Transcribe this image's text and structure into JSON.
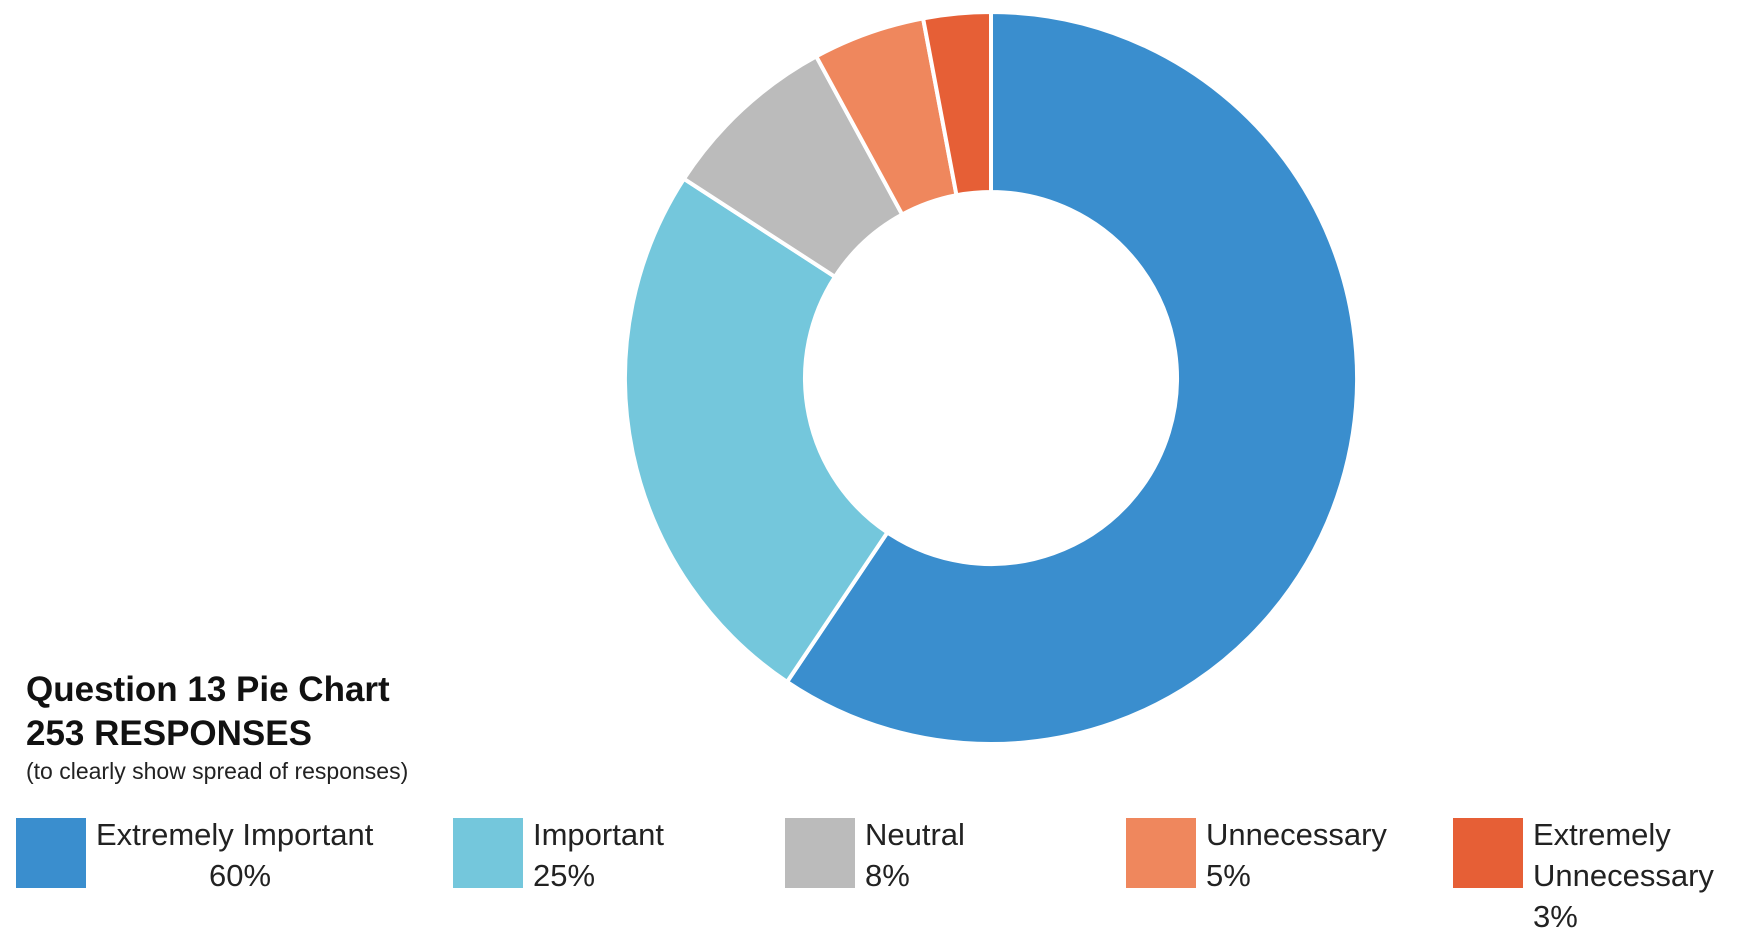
{
  "chart_data": {
    "type": "pie",
    "title": "Question 13 Pie Chart",
    "subtitle": "253 RESPONSES",
    "note": "(to clearly show spread of responses)",
    "categories": [
      "Extremely Important",
      "Important",
      "Neutral",
      "Unnecessary",
      "Extremely Unnecessary"
    ],
    "values": [
      60,
      25,
      8,
      5,
      3
    ],
    "value_labels": [
      "60%",
      "25%",
      "8%",
      "5%",
      "3%"
    ],
    "colors": [
      "#3A8ECE",
      "#74C7DC",
      "#BBBBBB",
      "#EF875D",
      "#E65F36"
    ],
    "donut": true,
    "legend_position": "bottom"
  }
}
